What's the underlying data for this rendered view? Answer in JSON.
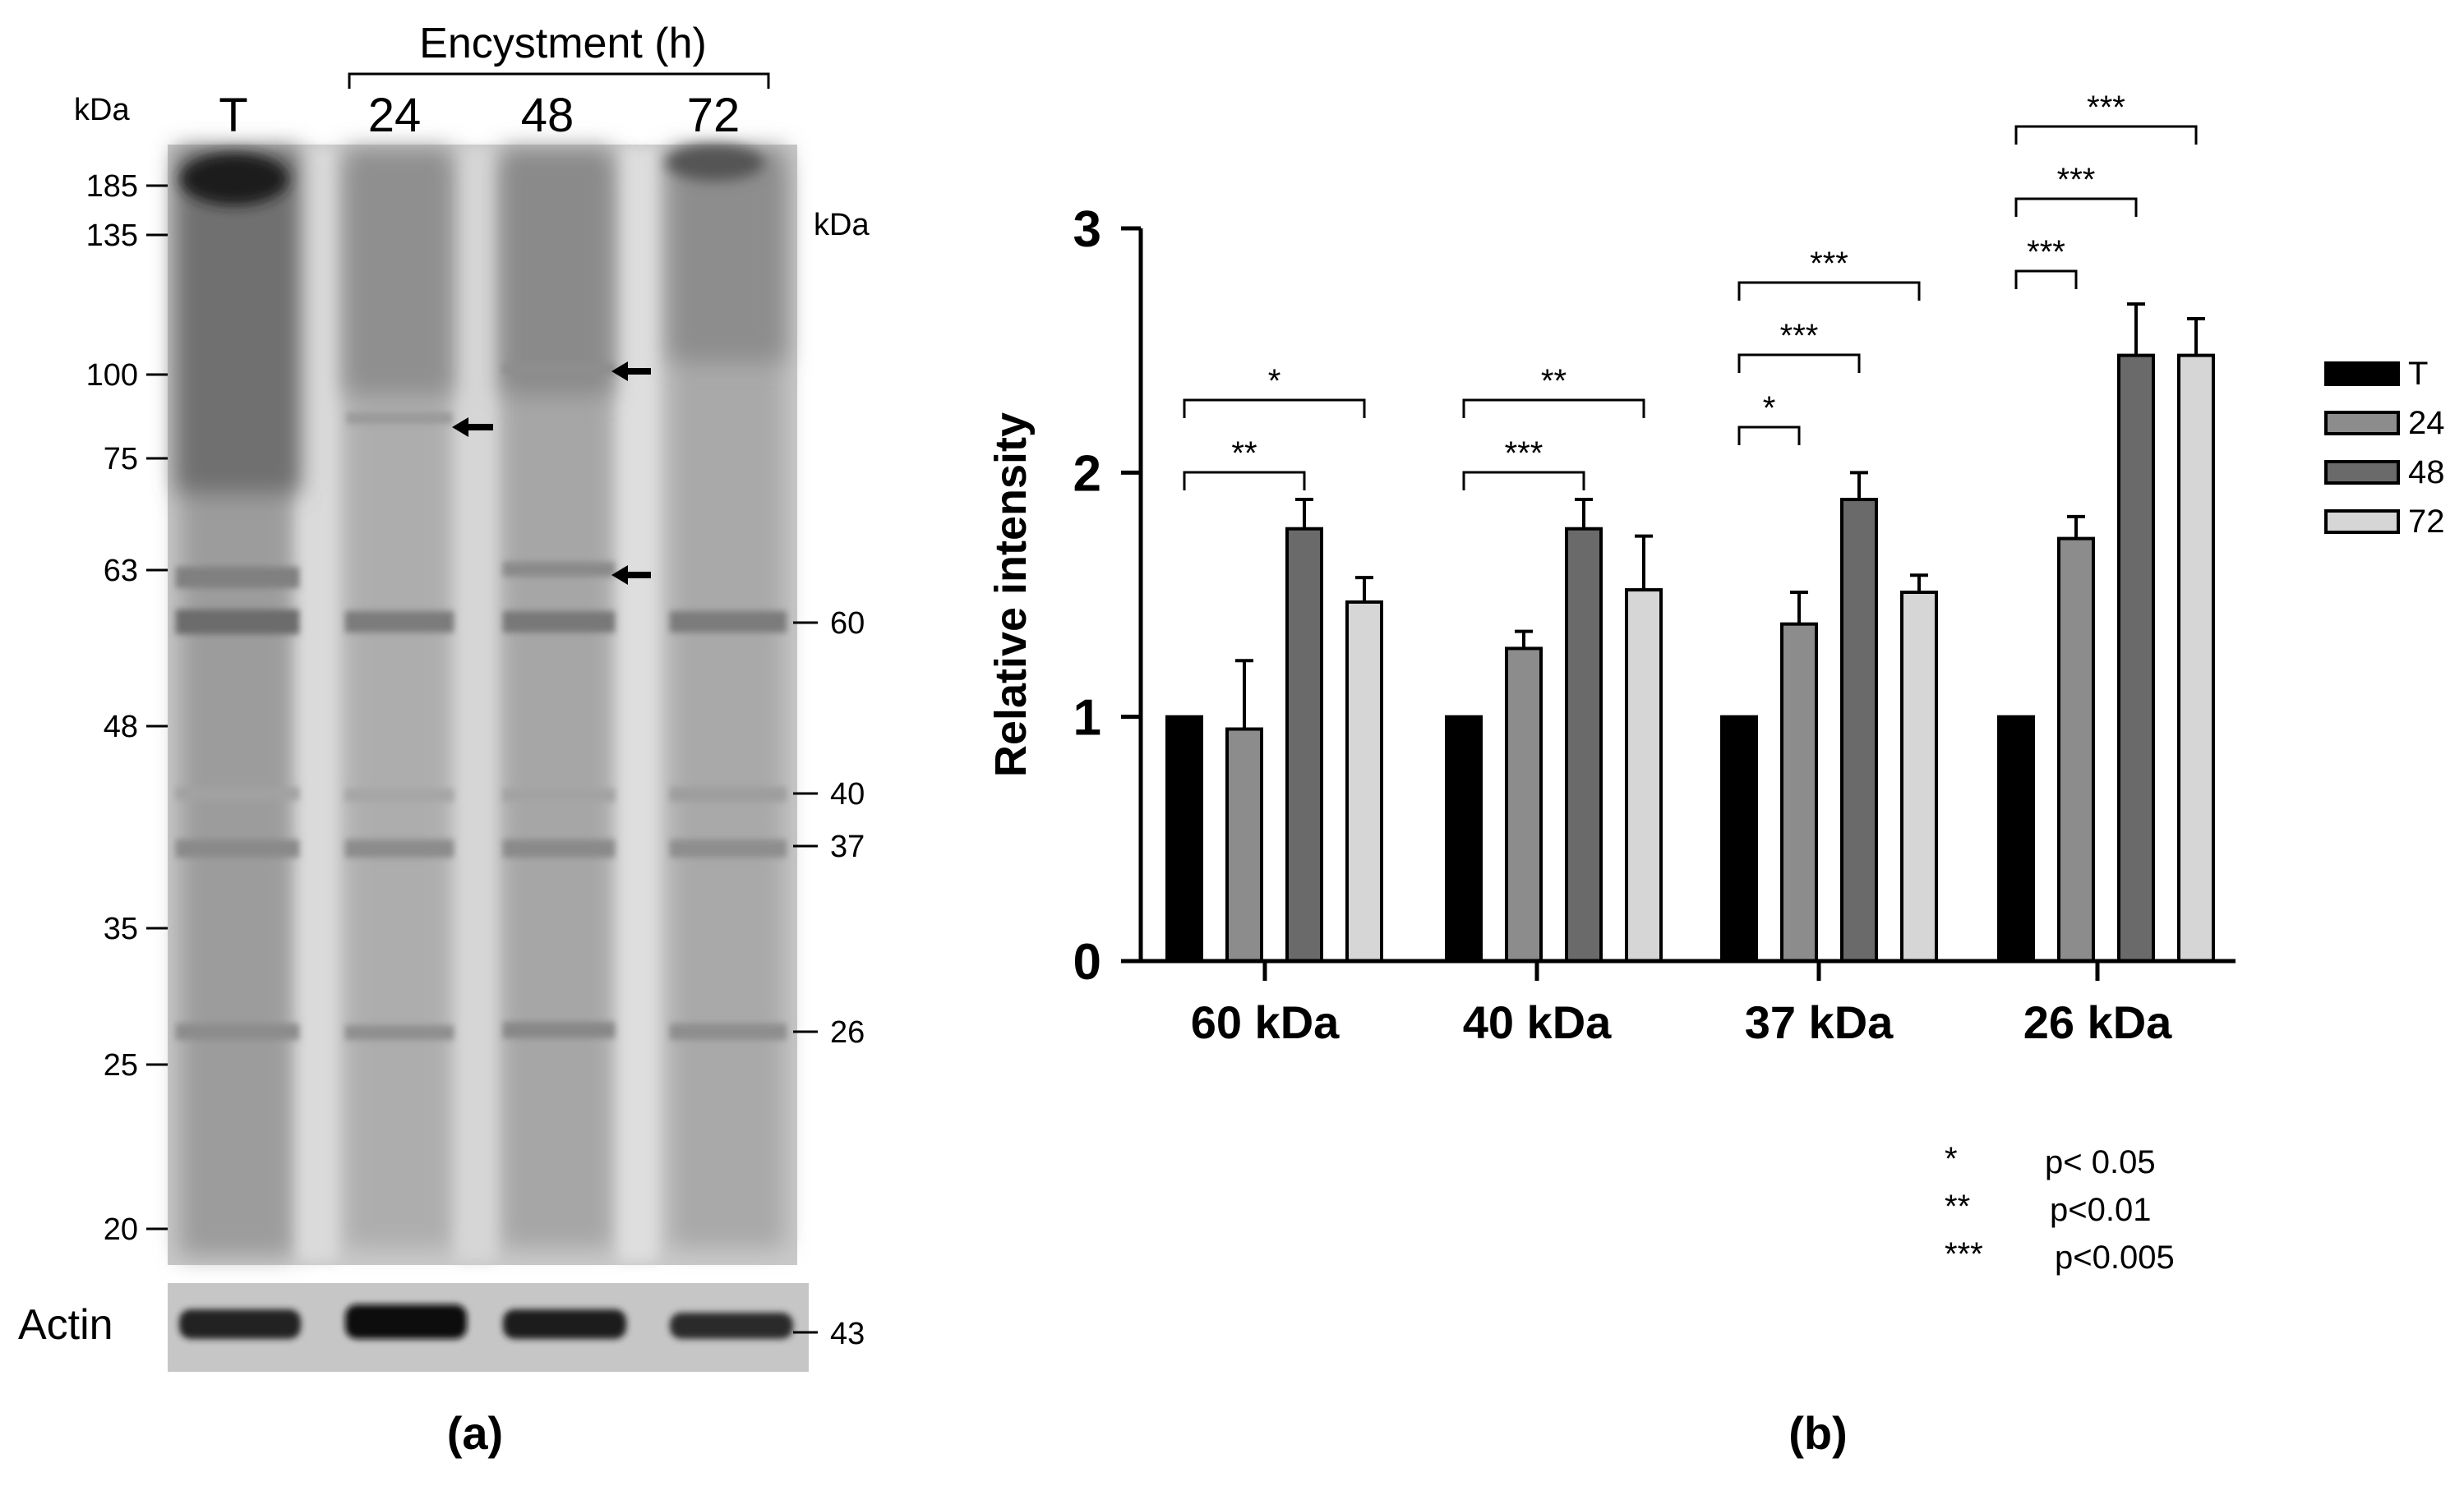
{
  "colors": {
    "background": "#ffffff",
    "ink": "#000000",
    "series_T": "#000000",
    "series_24": "#8c8c8c",
    "series_48": "#6a6a6a",
    "series_72": "#d6d6d6",
    "blot_bg": "#c9c9c9",
    "blot_band": "#858585"
  },
  "blot": {
    "header_label": "Encystment (h)",
    "kda_left": "kDa",
    "kda_right": "kDa",
    "lanes": [
      "T",
      "24",
      "48",
      "72"
    ],
    "left_markers": [
      "185",
      "135",
      "100",
      "75",
      "63",
      "48",
      "35",
      "25",
      "20"
    ],
    "right_markers": [
      "60",
      "40",
      "37",
      "26"
    ],
    "actin_label": "Actin",
    "actin_marker": "43",
    "arrows": [
      "arrow-lane-24",
      "arrow-lane-48-upper",
      "arrow-lane-48-lower"
    ],
    "caption": "(a)"
  },
  "chart_data": {
    "type": "bar",
    "categories": [
      "60 kDa",
      "40 kDa",
      "37 kDa",
      "26 kDa"
    ],
    "series": [
      {
        "name": "T",
        "values": [
          1.0,
          1.0,
          1.0,
          1.0
        ],
        "errors": [
          0,
          0,
          0,
          0
        ]
      },
      {
        "name": "24",
        "values": [
          0.95,
          1.28,
          1.38,
          1.73
        ],
        "errors": [
          0.28,
          0.07,
          0.13,
          0.09
        ]
      },
      {
        "name": "48",
        "values": [
          1.77,
          1.77,
          1.89,
          2.48
        ],
        "errors": [
          0.12,
          0.12,
          0.11,
          0.21
        ]
      },
      {
        "name": "72",
        "values": [
          1.47,
          1.52,
          1.51,
          2.48
        ],
        "errors": [
          0.1,
          0.22,
          0.07,
          0.15
        ]
      }
    ],
    "ylabel": "Relative intensity",
    "ylim": [
      0,
      3
    ],
    "yticks": [
      "0",
      "1",
      "2",
      "3"
    ],
    "significance": [
      {
        "category": 0,
        "from": 0,
        "to": 2,
        "label": "**"
      },
      {
        "category": 0,
        "from": 0,
        "to": 3,
        "label": "*"
      },
      {
        "category": 1,
        "from": 0,
        "to": 2,
        "label": "***"
      },
      {
        "category": 1,
        "from": 0,
        "to": 3,
        "label": "**"
      },
      {
        "category": 2,
        "from": 0,
        "to": 1,
        "label": "*"
      },
      {
        "category": 2,
        "from": 0,
        "to": 2,
        "label": "***"
      },
      {
        "category": 2,
        "from": 0,
        "to": 3,
        "label": "***"
      },
      {
        "category": 3,
        "from": 0,
        "to": 1,
        "label": "***"
      },
      {
        "category": 3,
        "from": 0,
        "to": 2,
        "label": "***"
      },
      {
        "category": 3,
        "from": 0,
        "to": 3,
        "label": "***"
      }
    ],
    "legend_position": "right",
    "key": [
      {
        "symbol": "*",
        "text": "p< 0.05"
      },
      {
        "symbol": "**",
        "text": "p<0.01"
      },
      {
        "symbol": "***",
        "text": "p<0.005"
      }
    ],
    "caption": "(b)"
  }
}
